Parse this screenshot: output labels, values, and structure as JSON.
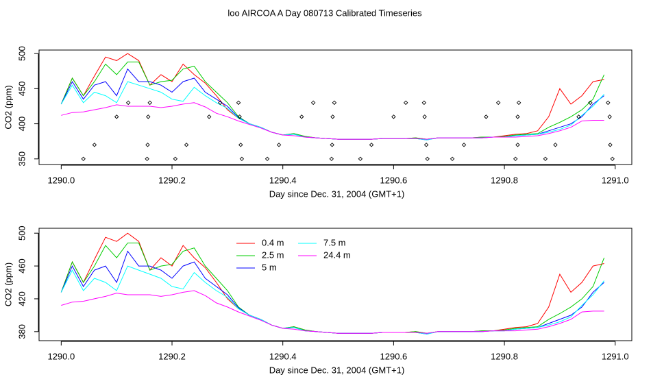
{
  "chart_data": [
    {
      "type": "line",
      "title": "loo AIRCOA A  Day 080713  Calibrated Timeseries",
      "xlabel": "Day since Dec. 31, 2004 (GMT+1)",
      "ylabel": "CO2 (ppm)",
      "xlim": [
        1289.96,
        1291.03
      ],
      "ylim": [
        342,
        505
      ],
      "xticks": [
        {
          "value": 1290,
          "label": "1290.0"
        },
        1290.2,
        1290.4,
        1290.6,
        1290.8,
        {
          "value": 1291,
          "label": "1291.0"
        }
      ],
      "yticks": [
        350,
        400,
        450,
        500
      ],
      "legend": false,
      "x": [
        1290,
        1290.02,
        1290.04,
        1290.06,
        1290.08,
        1290.1,
        1290.12,
        1290.14,
        1290.16,
        1290.18,
        1290.2,
        1290.22,
        1290.24,
        1290.26,
        1290.28,
        1290.3,
        1290.32,
        1290.34,
        1290.36,
        1290.38,
        1290.4,
        1290.42,
        1290.44,
        1290.46,
        1290.48,
        1290.5,
        1290.52,
        1290.54,
        1290.56,
        1290.58,
        1290.6,
        1290.62,
        1290.64,
        1290.66,
        1290.68,
        1290.7,
        1290.72,
        1290.74,
        1290.76,
        1290.78,
        1290.8,
        1290.82,
        1290.84,
        1290.86,
        1290.88,
        1290.9,
        1290.92,
        1290.94,
        1290.96,
        1290.98
      ],
      "series": [
        {
          "name": "0.4 m",
          "color": "#ff0000",
          "values": [
            428,
            465,
            440,
            468,
            495,
            490,
            500,
            490,
            455,
            470,
            460,
            485,
            470,
            458,
            440,
            420,
            408,
            400,
            395,
            388,
            384,
            386,
            382,
            380,
            379,
            378,
            378,
            378,
            378,
            379,
            379,
            379,
            380,
            378,
            380,
            380,
            380,
            380,
            381,
            381,
            383,
            385,
            386,
            390,
            410,
            450,
            428,
            440,
            460,
            463
          ]
        },
        {
          "name": "2.5 m",
          "color": "#00cd00",
          "values": [
            428,
            465,
            440,
            460,
            485,
            470,
            488,
            488,
            455,
            460,
            462,
            478,
            482,
            460,
            445,
            430,
            410,
            400,
            395,
            388,
            384,
            386,
            382,
            380,
            379,
            378,
            378,
            378,
            378,
            379,
            379,
            379,
            380,
            378,
            380,
            380,
            380,
            380,
            381,
            381,
            382,
            384,
            385,
            386,
            395,
            402,
            410,
            420,
            435,
            470
          ]
        },
        {
          "name": "5 m",
          "color": "#0000ff",
          "values": [
            428,
            460,
            435,
            455,
            460,
            440,
            478,
            460,
            460,
            455,
            445,
            460,
            465,
            445,
            435,
            425,
            409,
            400,
            395,
            388,
            384,
            385,
            381,
            380,
            379,
            378,
            378,
            378,
            378,
            379,
            379,
            379,
            379,
            377,
            380,
            380,
            380,
            380,
            380,
            381,
            381,
            383,
            384,
            385,
            390,
            395,
            400,
            410,
            428,
            440
          ]
        },
        {
          "name": "7.5 m",
          "color": "#00ffff",
          "values": [
            428,
            455,
            430,
            445,
            440,
            430,
            460,
            455,
            450,
            445,
            435,
            432,
            452,
            440,
            430,
            422,
            408,
            400,
            395,
            388,
            384,
            385,
            381,
            380,
            379,
            378,
            378,
            378,
            378,
            379,
            379,
            379,
            379,
            377,
            380,
            380,
            380,
            380,
            380,
            381,
            381,
            383,
            384,
            385,
            388,
            392,
            398,
            412,
            425,
            442
          ]
        },
        {
          "name": "24.4 m",
          "color": "#ff00ff",
          "values": [
            412,
            416,
            417,
            420,
            423,
            427,
            425,
            425,
            425,
            423,
            425,
            428,
            430,
            424,
            415,
            410,
            404,
            399,
            394,
            388,
            384,
            383,
            381,
            380,
            379,
            378,
            378,
            378,
            378,
            379,
            379,
            379,
            379,
            378,
            380,
            380,
            380,
            380,
            380,
            381,
            381,
            381,
            382,
            383,
            386,
            390,
            395,
            404,
            405,
            405
          ]
        }
      ],
      "markers": {
        "x": [
          1290.04,
          1290.155,
          1290.206,
          1290.326,
          1290.372,
          1290.488,
          1290.54,
          1290.661,
          1290.706,
          1290.82,
          1290.874,
          1290.995,
          1290.06,
          1290.156,
          1290.226,
          1290.324,
          1290.393,
          1290.489,
          1290.56,
          1290.659,
          1290.727,
          1290.824,
          1290.892,
          1290.991,
          1290.1,
          1290.157,
          1290.267,
          1290.322,
          1290.434,
          1290.49,
          1290.6,
          1290.656,
          1290.767,
          1290.824,
          1290.934,
          1290.99,
          1290.121,
          1290.16,
          1290.287,
          1290.32,
          1290.455,
          1290.493,
          1290.622,
          1290.655,
          1290.789,
          1290.826,
          1290.955,
          1290.987
        ],
        "y": [
          350,
          350,
          350,
          350,
          350,
          350,
          350,
          350,
          350,
          350,
          350,
          350,
          370,
          370,
          370,
          370,
          370,
          370,
          370,
          370,
          370,
          370,
          370,
          370,
          410,
          410,
          410,
          410,
          410,
          410,
          410,
          410,
          410,
          410,
          410,
          410,
          430,
          430,
          430,
          430,
          430,
          430,
          430,
          430,
          430,
          430,
          430,
          430
        ]
      }
    },
    {
      "type": "line",
      "xlabel": "Day since Dec. 31, 2004 (GMT+1)",
      "ylabel": "CO2 (ppm)",
      "xlim": [
        1289.96,
        1291.03
      ],
      "ylim": [
        369,
        506
      ],
      "xticks": [
        {
          "value": 1290,
          "label": "1290.0"
        },
        1290.2,
        1290.4,
        1290.6,
        1290.8,
        {
          "value": 1291,
          "label": "1291.0"
        }
      ],
      "yticks": [
        380,
        420,
        460,
        500
      ],
      "legend": true,
      "x": [
        1290,
        1290.02,
        1290.04,
        1290.06,
        1290.08,
        1290.1,
        1290.12,
        1290.14,
        1290.16,
        1290.18,
        1290.2,
        1290.22,
        1290.24,
        1290.26,
        1290.28,
        1290.3,
        1290.32,
        1290.34,
        1290.36,
        1290.38,
        1290.4,
        1290.42,
        1290.44,
        1290.46,
        1290.48,
        1290.5,
        1290.52,
        1290.54,
        1290.56,
        1290.58,
        1290.6,
        1290.62,
        1290.64,
        1290.66,
        1290.68,
        1290.7,
        1290.72,
        1290.74,
        1290.76,
        1290.78,
        1290.8,
        1290.82,
        1290.84,
        1290.86,
        1290.88,
        1290.9,
        1290.92,
        1290.94,
        1290.96,
        1290.98
      ],
      "series": [
        {
          "name": "0.4 m",
          "color": "#ff0000",
          "values": [
            428,
            465,
            440,
            468,
            495,
            490,
            500,
            490,
            455,
            470,
            460,
            485,
            470,
            458,
            440,
            420,
            408,
            400,
            395,
            388,
            384,
            386,
            382,
            380,
            379,
            378,
            378,
            378,
            378,
            379,
            379,
            379,
            380,
            378,
            380,
            380,
            380,
            380,
            381,
            381,
            383,
            385,
            386,
            390,
            410,
            450,
            428,
            440,
            460,
            463
          ]
        },
        {
          "name": "2.5 m",
          "color": "#00cd00",
          "values": [
            428,
            465,
            440,
            460,
            485,
            470,
            488,
            488,
            455,
            460,
            462,
            478,
            482,
            460,
            445,
            430,
            410,
            400,
            395,
            388,
            384,
            386,
            382,
            380,
            379,
            378,
            378,
            378,
            378,
            379,
            379,
            379,
            380,
            378,
            380,
            380,
            380,
            380,
            381,
            381,
            382,
            384,
            385,
            386,
            395,
            402,
            410,
            420,
            435,
            470
          ]
        },
        {
          "name": "5 m",
          "color": "#0000ff",
          "values": [
            428,
            460,
            435,
            455,
            460,
            440,
            478,
            460,
            460,
            455,
            445,
            460,
            465,
            445,
            435,
            425,
            409,
            400,
            395,
            388,
            384,
            385,
            381,
            380,
            379,
            378,
            378,
            378,
            378,
            379,
            379,
            379,
            379,
            377,
            380,
            380,
            380,
            380,
            380,
            381,
            381,
            383,
            384,
            385,
            390,
            395,
            400,
            410,
            428,
            440
          ]
        },
        {
          "name": "7.5 m",
          "color": "#00ffff",
          "values": [
            428,
            455,
            430,
            445,
            440,
            430,
            460,
            455,
            450,
            445,
            435,
            432,
            452,
            440,
            430,
            422,
            408,
            400,
            395,
            388,
            384,
            385,
            381,
            380,
            379,
            378,
            378,
            378,
            378,
            379,
            379,
            379,
            379,
            377,
            380,
            380,
            380,
            380,
            380,
            381,
            381,
            383,
            384,
            385,
            388,
            392,
            398,
            412,
            425,
            442
          ]
        },
        {
          "name": "24.4 m",
          "color": "#ff00ff",
          "values": [
            412,
            416,
            417,
            420,
            423,
            427,
            425,
            425,
            425,
            423,
            425,
            428,
            430,
            424,
            415,
            410,
            404,
            399,
            394,
            388,
            384,
            383,
            381,
            380,
            379,
            378,
            378,
            378,
            378,
            379,
            379,
            379,
            379,
            378,
            380,
            380,
            380,
            380,
            380,
            381,
            381,
            381,
            382,
            383,
            386,
            390,
            395,
            404,
            405,
            405
          ]
        }
      ]
    }
  ]
}
